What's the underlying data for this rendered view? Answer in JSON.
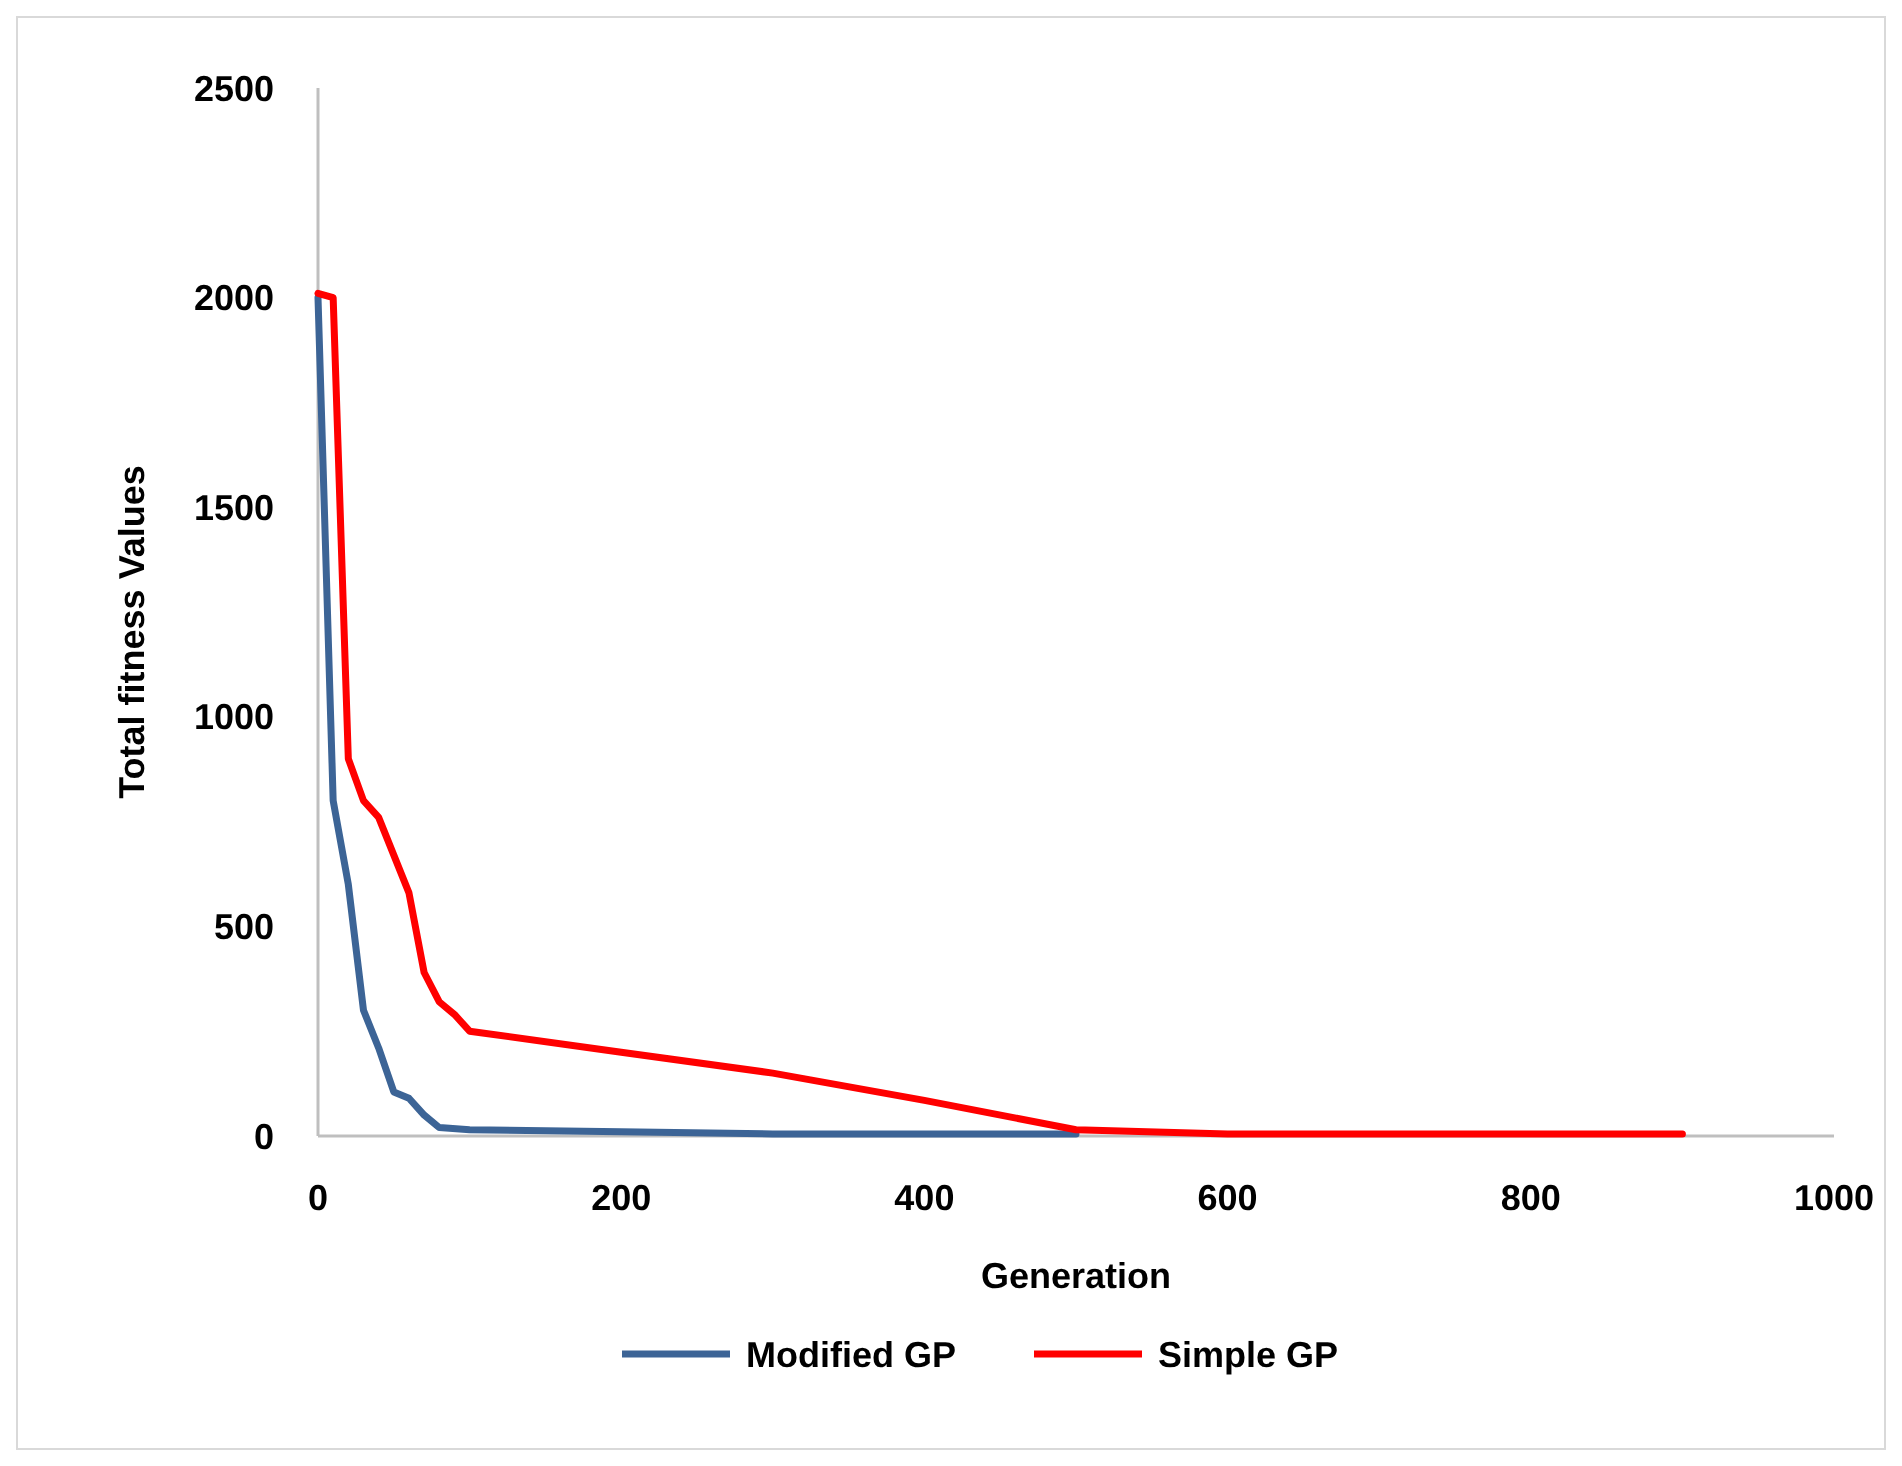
{
  "chart_data": {
    "type": "line",
    "xlabel": "Generation",
    "ylabel": "Total  fitness Values",
    "xlim": [
      0,
      1000
    ],
    "xticks": [
      0,
      200,
      400,
      600,
      800,
      1000
    ],
    "ylim": [
      0,
      2500
    ],
    "yticks": [
      0,
      500,
      1000,
      1500,
      2000,
      2500
    ],
    "grid": false,
    "legend": "bottom",
    "marker": "none",
    "line_style": "solid",
    "series": [
      {
        "name": "Modified GP",
        "color": "#3c6496",
        "x": [
          0,
          10,
          20,
          30,
          40,
          50,
          60,
          70,
          80,
          100,
          200,
          300,
          500
        ],
        "values": [
          2000,
          800,
          600,
          300,
          210,
          105,
          90,
          50,
          20,
          15,
          10,
          5,
          5
        ]
      },
      {
        "name": "Simple GP",
        "color": "#ff0000",
        "x": [
          0,
          10,
          20,
          30,
          40,
          50,
          60,
          70,
          80,
          90,
          100,
          200,
          300,
          400,
          500,
          600,
          900
        ],
        "values": [
          2010,
          2000,
          900,
          800,
          760,
          670,
          580,
          390,
          320,
          290,
          250,
          200,
          150,
          85,
          15,
          5,
          5
        ]
      }
    ]
  }
}
